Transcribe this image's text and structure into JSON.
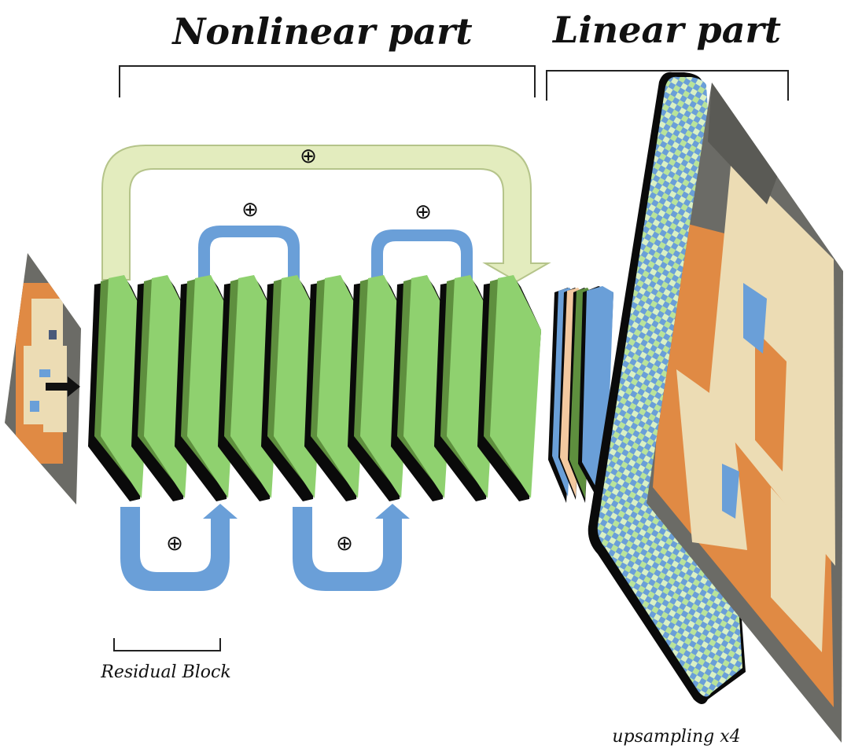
{
  "labels": {
    "nonlinear_part": "Nonlinear part",
    "linear_part": "Linear part",
    "residual_block": "Residual Block",
    "upsampling": "upsampling x4"
  },
  "symbols": {
    "add": "⊕"
  },
  "colors": {
    "block_green": "#8fd16f",
    "block_green_dark": "#5e8f3e",
    "skip_blue": "#6a9fd8",
    "global_skip": "#e3ecbe",
    "global_skip_edge": "#b5c48a",
    "linear_tan": "#f3c9a0",
    "face_orange": "#e08a44",
    "face_cream": "#ecdcb4",
    "face_gray": "#6b6b66"
  },
  "icons": [
    "black-arrow-icon",
    "global-skip-arrow-icon",
    "residual-skip-arrow-icon"
  ]
}
